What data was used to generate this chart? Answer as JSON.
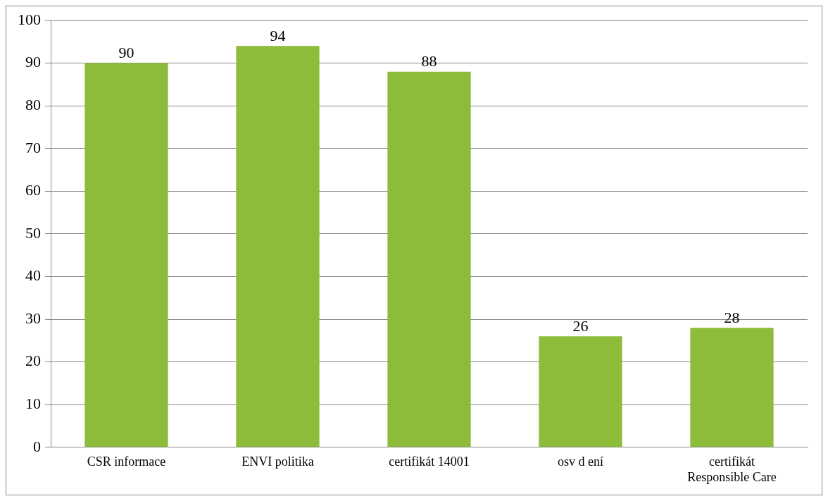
{
  "chart_data": {
    "type": "bar",
    "categories": [
      "CSR informace",
      "ENVI politika",
      "certifikát 14001",
      "osv d ení",
      "certifikát\nResponsible Care"
    ],
    "values": [
      90,
      94,
      88,
      26,
      28
    ],
    "color": "#8dbb3a",
    "ylim": [
      0,
      100
    ],
    "yticks": [
      0,
      10,
      20,
      30,
      40,
      50,
      60,
      70,
      80,
      90,
      100
    ],
    "grid": "y",
    "data_labels": true,
    "legend": false
  }
}
